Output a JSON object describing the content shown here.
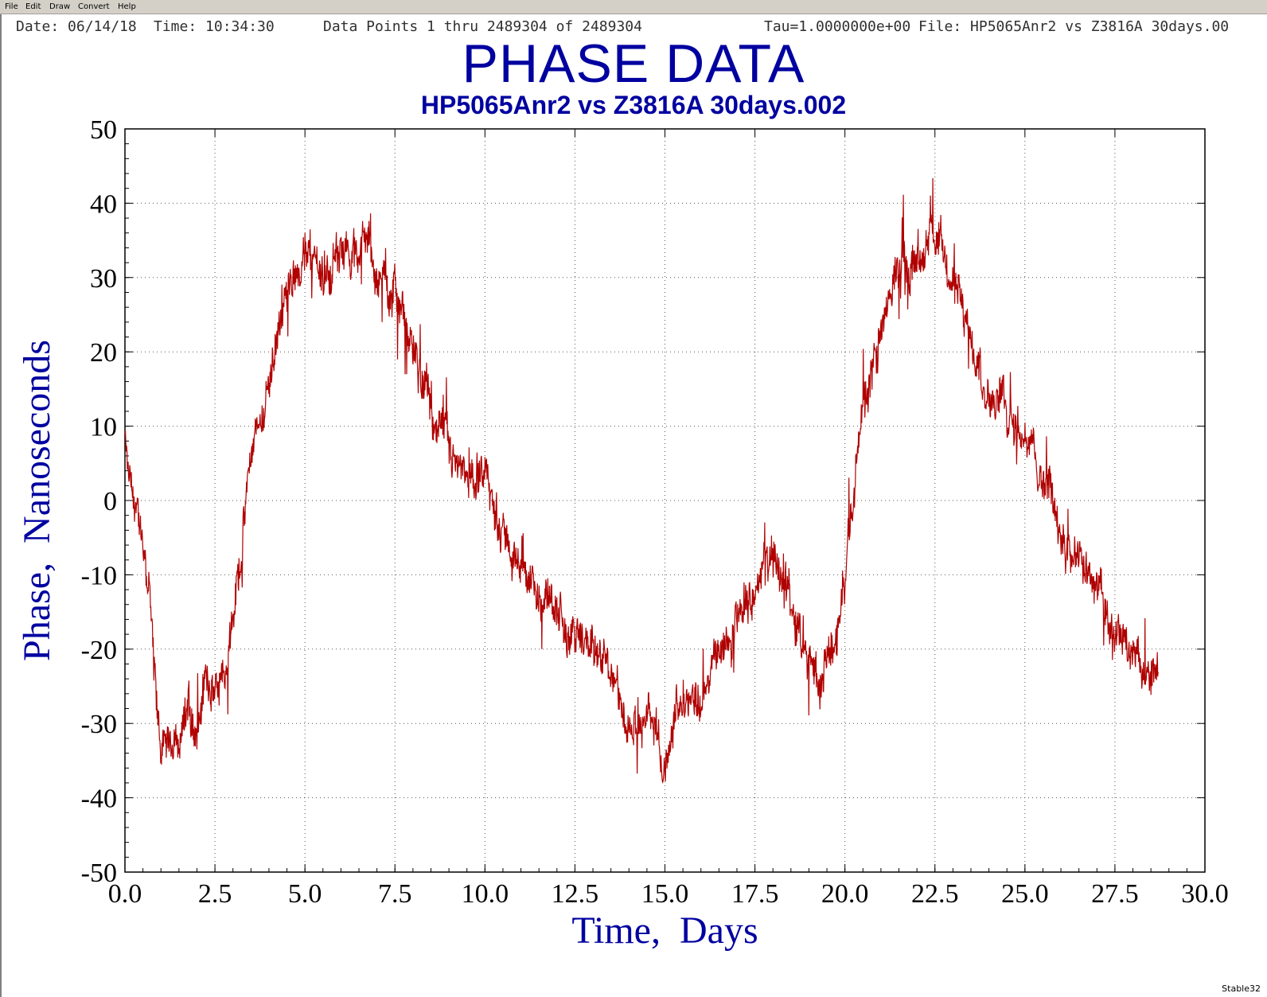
{
  "menu": [
    "File",
    "Edit",
    "Draw",
    "Convert",
    "Help"
  ],
  "header": {
    "date": "Date: 06/14/18",
    "time": "Time: 10:34:30",
    "points": "Data Points 1 thru 2489304 of 2489304",
    "tau": "Tau=1.0000000e+00",
    "file": "File: HP5065Anr2 vs Z3816A 30days.00"
  },
  "footer": "Stable32",
  "colors": {
    "title": "#0000a0",
    "trace": "#b00000",
    "axis": "#000000",
    "grid": "#555555"
  },
  "chart_data": {
    "type": "line",
    "title": "PHASE DATA",
    "subtitle": "HP5065Anr2 vs Z3816A 30days.002",
    "xlabel": "Time,  Days",
    "ylabel": "Phase,  Nanoseconds",
    "xlim": [
      0,
      30
    ],
    "ylim": [
      -50,
      50
    ],
    "xticks": [
      "0.0",
      "2.5",
      "5.0",
      "7.5",
      "10.0",
      "12.5",
      "15.0",
      "17.5",
      "20.0",
      "22.5",
      "25.0",
      "27.5",
      "30.0"
    ],
    "yticks": [
      "50",
      "40",
      "30",
      "20",
      "10",
      "0",
      "-10",
      "-20",
      "-30",
      "-40",
      "-50"
    ],
    "grid": true,
    "series": [
      {
        "x": [
          0.0,
          0.1,
          0.3,
          0.5,
          0.7,
          0.9,
          1.0,
          1.2,
          1.5,
          1.8,
          2.0,
          2.2,
          2.5,
          2.8,
          3.0,
          3.3,
          3.5,
          3.8,
          4.0,
          4.3,
          4.6,
          4.9,
          5.2,
          5.5,
          5.8,
          6.1,
          6.4,
          6.8,
          7.0,
          7.5,
          7.8,
          8.0,
          8.3,
          8.6,
          9.0,
          9.3,
          9.6,
          10.0,
          10.3,
          10.6,
          11.0,
          11.3,
          11.6,
          12.0,
          12.3,
          12.6,
          13.0,
          13.3,
          13.6,
          14.0,
          14.3,
          14.6,
          14.9,
          15.2,
          15.5,
          15.8,
          16.0,
          16.3,
          16.6,
          17.0,
          17.3,
          17.6,
          18.0,
          18.3,
          18.6,
          18.9,
          19.2,
          19.5,
          19.8,
          20.0,
          20.3,
          20.6,
          21.0,
          21.3,
          21.6,
          22.0,
          22.3,
          22.6,
          22.9,
          23.2,
          23.5,
          23.8,
          24.0,
          24.3,
          24.6,
          25.0,
          25.3,
          25.6,
          26.0,
          26.3,
          26.6,
          27.0,
          27.3,
          27.6,
          28.0,
          28.3,
          28.7
        ],
        "y": [
          8,
          2,
          -2,
          -6,
          -12,
          -28,
          -34,
          -32,
          -31,
          -28,
          -33,
          -26,
          -25,
          -20,
          -14,
          -3,
          6,
          12,
          16,
          25,
          30,
          31,
          32,
          30,
          33,
          35,
          34,
          35,
          31,
          28,
          22,
          20,
          15,
          10,
          7,
          6,
          3,
          1,
          -2,
          -6,
          -10,
          -11,
          -13,
          -15,
          -17,
          -18,
          -20,
          -22,
          -25,
          -29,
          -30,
          -29,
          -35,
          -31,
          -28,
          -26,
          -27,
          -22,
          -20,
          -16,
          -12,
          -10,
          -8,
          -10,
          -16,
          -20,
          -24,
          -22,
          -18,
          -10,
          5,
          15,
          22,
          28,
          33,
          35,
          37,
          35,
          30,
          26,
          20,
          18,
          15,
          14,
          12,
          10,
          6,
          2,
          -3,
          -7,
          -10,
          -13,
          -16,
          -18,
          -22,
          -23,
          -22
        ]
      }
    ]
  }
}
